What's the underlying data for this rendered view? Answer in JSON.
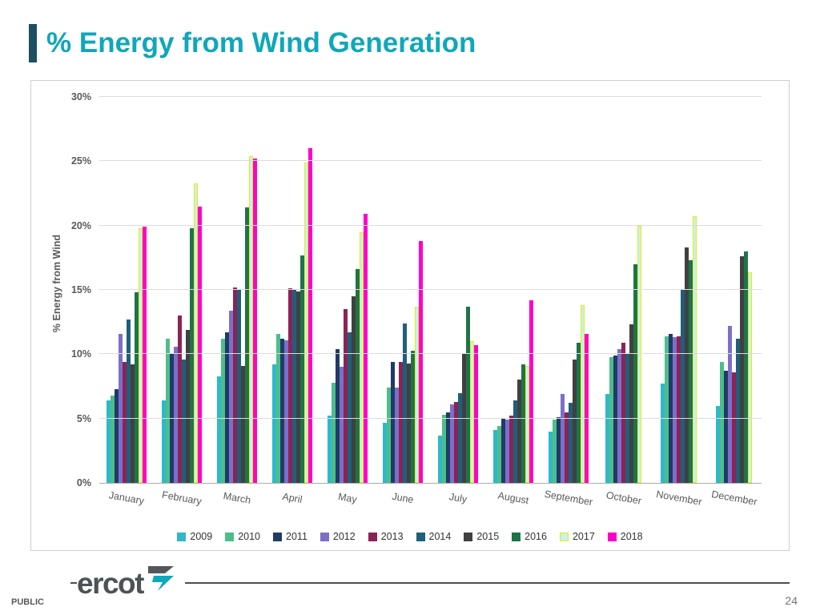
{
  "slide": {
    "title": "% Energy from Wind Generation",
    "footer_label": "PUBLIC",
    "page_number": "24",
    "logo_text": "ercot"
  },
  "chart_data": {
    "type": "bar",
    "title": "",
    "xlabel": "",
    "ylabel": "% Energy from Wind",
    "ylim": [
      0,
      30
    ],
    "yticks": [
      0,
      5,
      10,
      15,
      20,
      25,
      30
    ],
    "ytick_format": "percent",
    "grid": true,
    "legend_position": "bottom",
    "x_tick_rotation": 10,
    "categories": [
      "January",
      "February",
      "March",
      "April",
      "May",
      "June",
      "July",
      "August",
      "September",
      "October",
      "November",
      "December"
    ],
    "series": [
      {
        "name": "2009",
        "color": "#2fb8c9",
        "values": [
          6.4,
          6.4,
          8.3,
          9.2,
          5.2,
          4.7,
          3.7,
          4.1,
          4.0,
          6.9,
          7.7,
          6.0
        ]
      },
      {
        "name": "2010",
        "color": "#4dbe8a",
        "values": [
          6.8,
          11.2,
          11.2,
          11.6,
          7.8,
          7.4,
          5.3,
          4.4,
          4.9,
          9.8,
          11.4,
          9.4
        ]
      },
      {
        "name": "2011",
        "color": "#1f3b66",
        "values": [
          7.3,
          10.0,
          11.7,
          11.2,
          10.4,
          9.4,
          5.5,
          5.0,
          5.1,
          9.9,
          11.6,
          8.7
        ]
      },
      {
        "name": "2012",
        "color": "#7c6fc9",
        "values": [
          11.6,
          10.6,
          13.4,
          11.1,
          9.0,
          7.4,
          6.1,
          4.9,
          6.9,
          10.4,
          11.3,
          12.2
        ]
      },
      {
        "name": "2013",
        "color": "#8b2356",
        "values": [
          9.4,
          13.0,
          15.2,
          15.1,
          13.5,
          9.4,
          6.3,
          5.2,
          5.5,
          10.9,
          11.4,
          8.6
        ]
      },
      {
        "name": "2014",
        "color": "#1f5f7a",
        "values": [
          12.7,
          9.6,
          15.0,
          15.0,
          11.7,
          12.4,
          7.0,
          6.4,
          6.2,
          10.1,
          15.0,
          11.2
        ]
      },
      {
        "name": "2015",
        "color": "#404040",
        "values": [
          9.2,
          11.9,
          9.1,
          14.9,
          14.5,
          9.3,
          10.1,
          8.0,
          9.6,
          12.3,
          18.3,
          17.6
        ]
      },
      {
        "name": "2016",
        "color": "#1e7448",
        "values": [
          14.8,
          19.8,
          21.4,
          17.7,
          16.6,
          10.3,
          13.7,
          9.2,
          10.9,
          17.0,
          17.3,
          18.0
        ]
      },
      {
        "name": "2017",
        "color": "#c9f0f5",
        "border_color": "#e6ed0c",
        "values": [
          19.8,
          23.3,
          25.4,
          24.9,
          19.5,
          13.7,
          11.0,
          9.1,
          13.8,
          20.0,
          20.7,
          16.4
        ]
      },
      {
        "name": "2018",
        "color": "#ff00c8",
        "values": [
          19.9,
          21.5,
          25.2,
          26.0,
          20.9,
          18.8,
          10.7,
          14.2,
          11.6,
          null,
          null,
          null
        ]
      }
    ]
  }
}
